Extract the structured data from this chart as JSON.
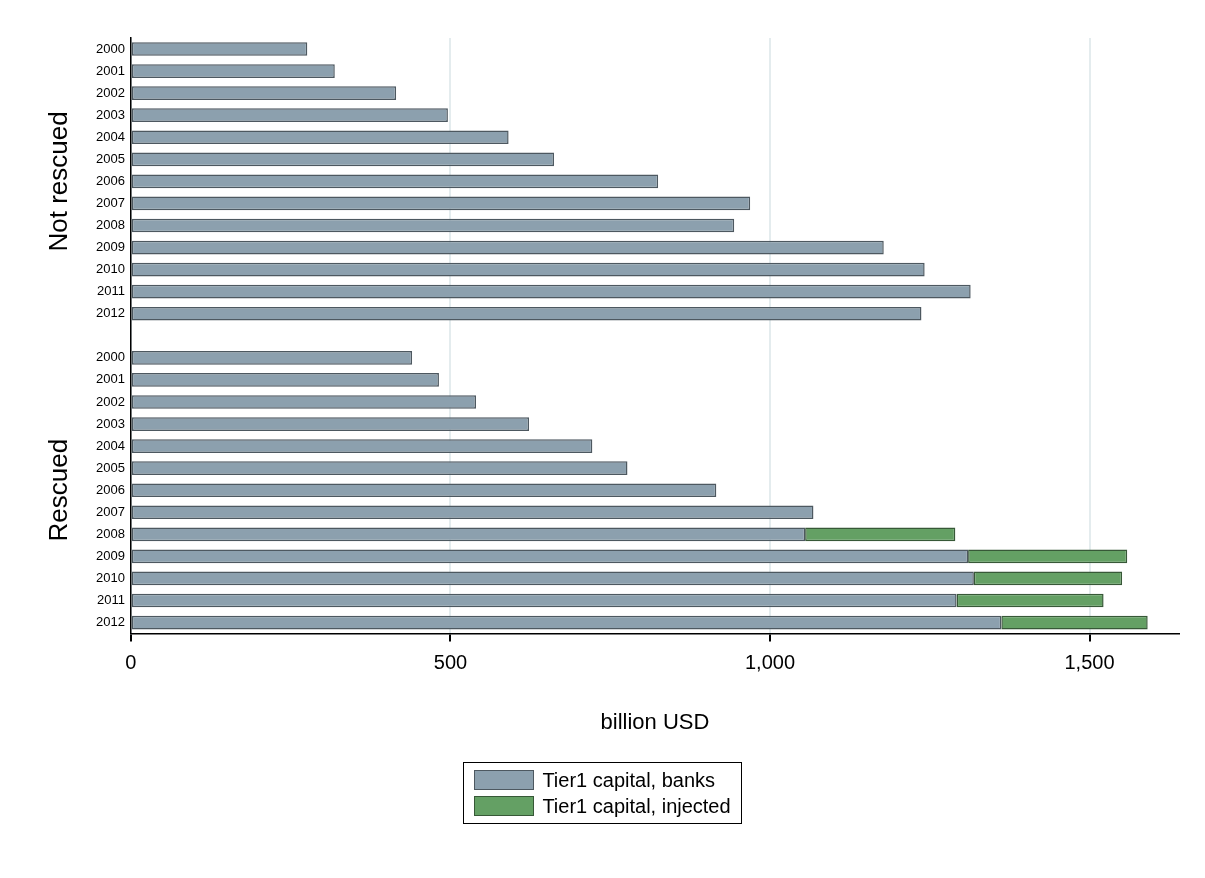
{
  "chart_data": {
    "type": "bar",
    "orientation": "horizontal",
    "stacked": true,
    "categories": [
      "2000",
      "2001",
      "2002",
      "2003",
      "2004",
      "2005",
      "2006",
      "2007",
      "2008",
      "2009",
      "2010",
      "2011",
      "2012",
      null,
      "2000",
      "2001",
      "2002",
      "2003",
      "2004",
      "2005",
      "2006",
      "2007",
      "2008",
      "2009",
      "2010",
      "2011",
      "2012"
    ],
    "series": [
      {
        "name": "Tier1 capital, banks",
        "color": "#8ca0ae",
        "values": [
          276,
          319,
          415,
          496,
          591,
          662,
          825,
          969,
          944,
          1178,
          1242,
          1314,
          1237,
          null,
          440,
          482,
          540,
          623,
          722,
          777,
          916,
          1068,
          1055,
          1310,
          1319,
          1292,
          1362
        ]
      },
      {
        "name": "Tier1 capital, injected",
        "color": "#64a064",
        "values": [
          null,
          null,
          null,
          null,
          null,
          null,
          null,
          null,
          null,
          null,
          null,
          null,
          null,
          null,
          null,
          null,
          null,
          null,
          null,
          null,
          null,
          null,
          235,
          249,
          232,
          230,
          229
        ]
      }
    ],
    "xlabel": "billion USD",
    "xlim": [
      0,
      1640
    ],
    "xticks": [
      0,
      500,
      {
        "value": 1000,
        "label": "1,000"
      },
      {
        "value": 1500,
        "label": "1,500"
      }
    ],
    "annotations": [
      "Not rescued",
      "Rescued"
    ],
    "grid": "x",
    "legend": "bottom"
  }
}
